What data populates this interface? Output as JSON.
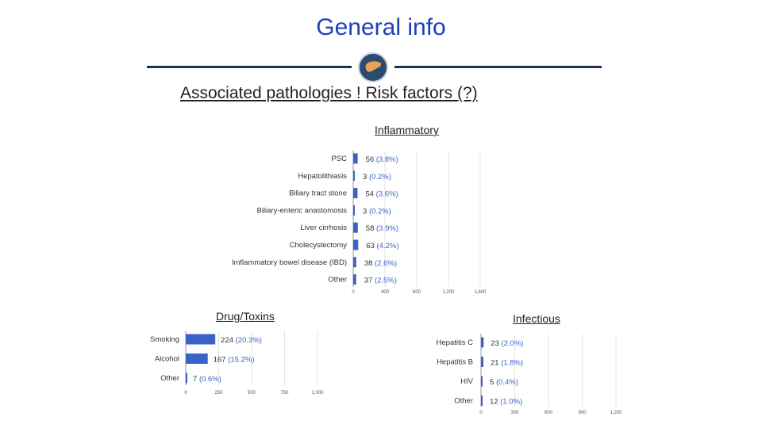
{
  "header": {
    "title": "General info",
    "subtitle": "Associated pathologies ! Risk factors (?)",
    "logo_icon": "liver-icon"
  },
  "colors": {
    "title": "#1f3fbf",
    "bar": "#3a62c9",
    "rule": "#1e3550"
  },
  "sections": {
    "inflammatory": "Inflammatory",
    "drug_toxins": "Drug/Toxins",
    "infectious": "Infectious"
  },
  "chart_data": [
    {
      "id": "inflammatory",
      "type": "bar",
      "orientation": "horizontal",
      "title": "Inflammatory",
      "categories": [
        "PSC",
        "Hepatolithiasis",
        "Biliary tract stone",
        "Biliary-enteric anastomosis",
        "Liver cirrhosis",
        "Cholecystectomy",
        "Imflammatory bowel disease (IBD)",
        "Other"
      ],
      "values": [
        56,
        3,
        54,
        3,
        58,
        63,
        38,
        37
      ],
      "labels": [
        "56 (3.8%)",
        "3 (0.2%)",
        "54 (3.6%)",
        "3 (0.2%)",
        "58 (3.9%)",
        "63 (4.2%)",
        "38 (2.6%)",
        "37 (2.5%)"
      ],
      "xticks": [
        "0",
        "400",
        "800",
        "1,200",
        "1,600"
      ],
      "xlim": [
        0,
        1600
      ],
      "grid": true
    },
    {
      "id": "drug_toxins",
      "type": "bar",
      "orientation": "horizontal",
      "title": "Drug/Toxins",
      "categories": [
        "Smoking",
        "Alcohol",
        "Other"
      ],
      "values": [
        224,
        167,
        7
      ],
      "labels": [
        "224 (20.3%)",
        "167 (15.2%)",
        "7 (0.6%)"
      ],
      "xticks": [
        "0",
        "250",
        "500",
        "750",
        "1,000"
      ],
      "xlim": [
        0,
        1000
      ],
      "grid": true
    },
    {
      "id": "infectious",
      "type": "bar",
      "orientation": "horizontal",
      "title": "Infectious",
      "categories": [
        "Hepatitis C",
        "Hepatitis B",
        "HIV",
        "Other"
      ],
      "values": [
        23,
        21,
        5,
        12
      ],
      "labels": [
        "23 (2.0%)",
        "21 (1.8%)",
        "5 (0.4%)",
        "12 (1.0%)"
      ],
      "xticks": [
        "0",
        "300",
        "600",
        "900",
        "1,200"
      ],
      "xlim": [
        0,
        1200
      ],
      "grid": true
    }
  ]
}
